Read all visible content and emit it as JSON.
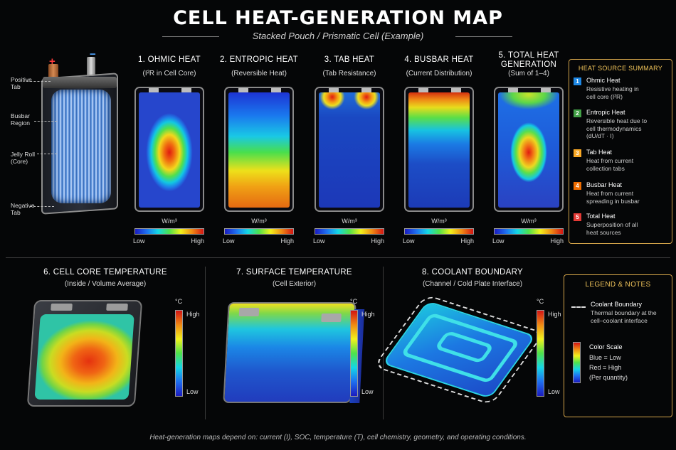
{
  "header": {
    "title": "CELL HEAT-GENERATION MAP",
    "subtitle": "Stacked Pouch / Prismatic Cell (Example)"
  },
  "cutaway": {
    "plus_sign": "+",
    "minus_sign": "−",
    "callouts": [
      "Positive\nTab",
      "Busbar\nRegion",
      "Jelly Roll\n(Core)",
      "Negative\nTab"
    ]
  },
  "panels": [
    {
      "title": "1. OHMIC HEAT",
      "subtitle": "(I²R in Cell Core)",
      "unit": "W/m³",
      "low": "Low",
      "high": "High",
      "pattern": "center"
    },
    {
      "title": "2. ENTROPIC HEAT",
      "subtitle": "(Reversible Heat)",
      "unit": "W/m³",
      "low": "Low",
      "high": "High",
      "pattern": "gradient"
    },
    {
      "title": "3. TAB HEAT",
      "subtitle": "(Tab Resistance)",
      "unit": "W/m³",
      "low": "Low",
      "high": "High",
      "pattern": "tabs"
    },
    {
      "title": "4. BUSBAR HEAT",
      "subtitle": "(Current Distribution)",
      "unit": "W/m³",
      "low": "Low",
      "high": "High",
      "pattern": "top"
    },
    {
      "title": "5. TOTAL HEAT\nGENERATION",
      "subtitle": "(Sum of 1–4)",
      "unit": "W/m³",
      "low": "Low",
      "high": "High",
      "pattern": "total"
    }
  ],
  "summary": {
    "title": "HEAT SOURCE SUMMARY",
    "items": [
      {
        "num": "1",
        "color": "#1e88e5",
        "head": "Ohmic Heat",
        "desc": "Resistive heating in\ncell core (I²R)"
      },
      {
        "num": "2",
        "color": "#43a047",
        "head": "Entropic Heat",
        "desc": "Reversible heat due to\ncell thermodynamics\n(dU/dT · I)"
      },
      {
        "num": "3",
        "color": "#f9a825",
        "head": "Tab Heat",
        "desc": "Heat from current\ncollection tabs"
      },
      {
        "num": "4",
        "color": "#ef6c00",
        "head": "Busbar Heat",
        "desc": "Heat from current\nspreading in busbar"
      },
      {
        "num": "5",
        "color": "#e53935",
        "head": "Total Heat",
        "desc": "Superposition of all\nheat sources"
      }
    ]
  },
  "bottom_panels": [
    {
      "title": "6. CELL CORE TEMPERATURE",
      "subtitle": "(Inside / Volume Average)",
      "unit": "°C",
      "high": "High",
      "low": "Low"
    },
    {
      "title": "7. SURFACE TEMPERATURE",
      "subtitle": "(Cell Exterior)",
      "unit": "°C",
      "high": "High",
      "low": "Low"
    },
    {
      "title": "8. COOLANT BOUNDARY",
      "subtitle": "(Channel / Cold Plate Interface)",
      "unit": "°C",
      "high": "High",
      "low": "Low"
    }
  ],
  "legend": {
    "title": "LEGEND & NOTES",
    "boundary_head": "Coolant Boundary",
    "boundary_desc": "Thermal boundary at the\ncell–coolant interface",
    "scale_head": "Color Scale",
    "scale_blue": "Blue = Low",
    "scale_red": "Red = High",
    "scale_note": "(Per quantity)"
  },
  "footer": "Heat-generation maps depend on: current (I), SOC, temperature (T), cell chemistry, geometry, and operating conditions.",
  "colors": {
    "accent_gold": "#d4a44a",
    "low": "#1b1bbf",
    "high": "#d41414"
  }
}
